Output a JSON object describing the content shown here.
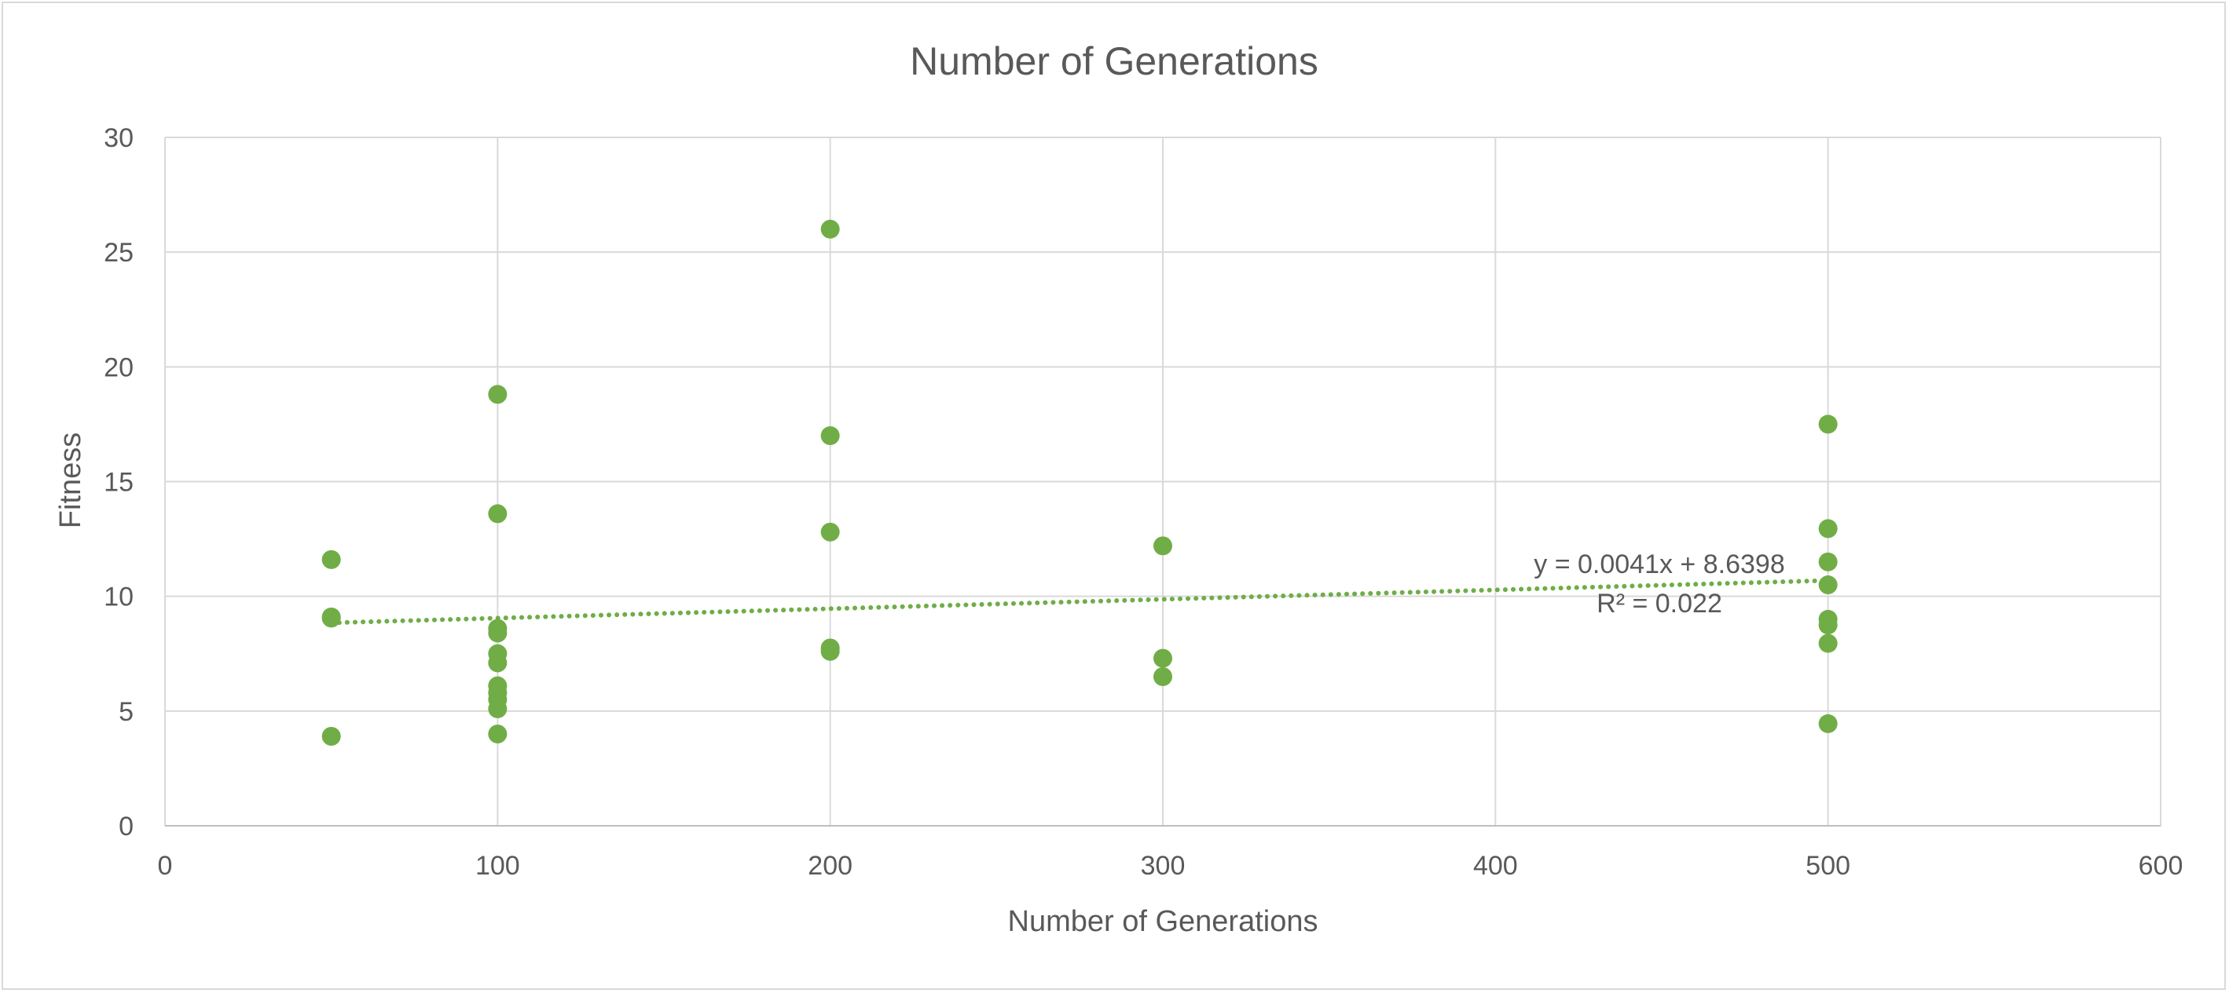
{
  "chart_data": {
    "type": "scatter",
    "title": "Number of Generations",
    "xlabel": "Number of Generations",
    "ylabel": "Fitness",
    "xlim": [
      0,
      600
    ],
    "ylim": [
      0,
      30
    ],
    "x_ticks": [
      "0",
      "100",
      "200",
      "300",
      "400",
      "500",
      "600"
    ],
    "y_ticks": [
      "0",
      "5",
      "10",
      "15",
      "20",
      "25",
      "30"
    ],
    "x_tick_values": [
      0,
      100,
      200,
      300,
      400,
      500,
      600
    ],
    "y_tick_values": [
      0,
      5,
      10,
      15,
      20,
      25,
      30
    ],
    "grid": true,
    "legend": "none",
    "marker_color": "#70AD47",
    "series": [
      {
        "points": [
          [
            50,
            11.6
          ],
          [
            50,
            9.1
          ],
          [
            50,
            9.05
          ],
          [
            50,
            3.9
          ],
          [
            100,
            18.8
          ],
          [
            100,
            13.6
          ],
          [
            100,
            8.6
          ],
          [
            100,
            8.4
          ],
          [
            100,
            7.5
          ],
          [
            100,
            7.1
          ],
          [
            100,
            6.1
          ],
          [
            100,
            5.8
          ],
          [
            100,
            5.5
          ],
          [
            100,
            5.1
          ],
          [
            100,
            4.0
          ],
          [
            200,
            26.0
          ],
          [
            200,
            17.0
          ],
          [
            200,
            12.8
          ],
          [
            200,
            7.75
          ],
          [
            200,
            7.6
          ],
          [
            300,
            12.2
          ],
          [
            300,
            7.3
          ],
          [
            300,
            6.5
          ],
          [
            500,
            17.5
          ],
          [
            500,
            12.95
          ],
          [
            500,
            11.5
          ],
          [
            500,
            10.5
          ],
          [
            500,
            9.0
          ],
          [
            500,
            8.75
          ],
          [
            500,
            7.95
          ],
          [
            500,
            4.45
          ]
        ]
      }
    ],
    "trendline": {
      "type": "linear",
      "slope": 0.0041,
      "intercept": 8.6398,
      "x_range": [
        50,
        500
      ],
      "equation_label": "y = 0.0041x + 8.6398",
      "r2_label": "R² = 0.022",
      "style": "dotted",
      "color": "#70AD47"
    }
  }
}
